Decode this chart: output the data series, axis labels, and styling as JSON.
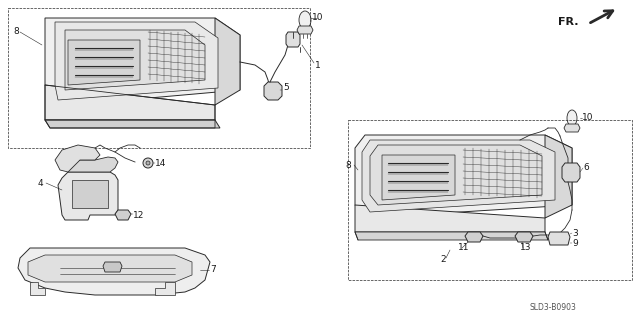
{
  "background_color": "#ffffff",
  "diagram_code": "SLD3-B0903",
  "figsize": [
    6.4,
    3.19
  ],
  "dpi": 100,
  "line_color": "#2a2a2a",
  "label_color": "#1a1a1a"
}
